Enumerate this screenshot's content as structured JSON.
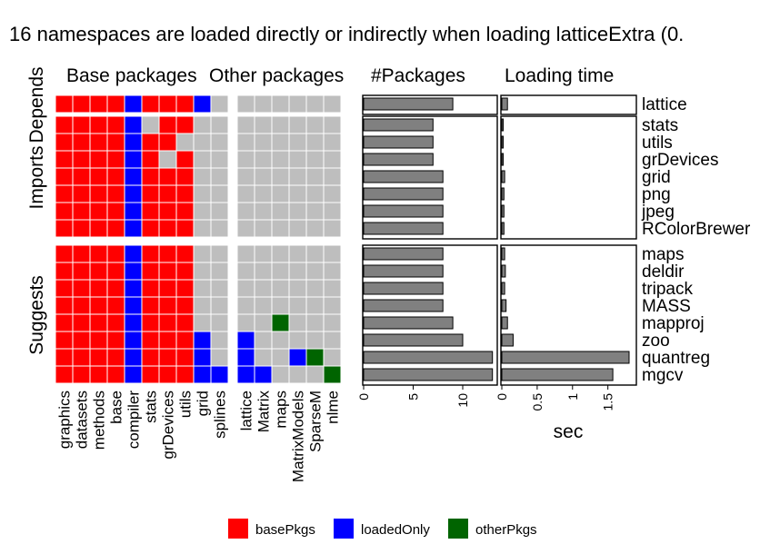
{
  "chart_data": {
    "title": "16 namespaces are loaded directly or indirectly when loading latticeExtra (0.",
    "type": "heatmap",
    "panel_titles": {
      "base": "Base packages",
      "other": "Other packages",
      "count": "#Packages",
      "time": "Loading time"
    },
    "row_groups": [
      "Depends",
      "Imports",
      "Suggests"
    ],
    "rows": [
      {
        "name": "lattice",
        "group": "Depends",
        "n_packages": 9,
        "load_sec": 0.08
      },
      {
        "name": "stats",
        "group": "Imports",
        "n_packages": 7,
        "load_sec": 0.01
      },
      {
        "name": "utils",
        "group": "Imports",
        "n_packages": 7,
        "load_sec": 0.01
      },
      {
        "name": "grDevices",
        "group": "Imports",
        "n_packages": 7,
        "load_sec": 0.01
      },
      {
        "name": "grid",
        "group": "Imports",
        "n_packages": 8,
        "load_sec": 0.04
      },
      {
        "name": "png",
        "group": "Imports",
        "n_packages": 8,
        "load_sec": 0.03
      },
      {
        "name": "jpeg",
        "group": "Imports",
        "n_packages": 8,
        "load_sec": 0.03
      },
      {
        "name": "RColorBrewer",
        "group": "Imports",
        "n_packages": 8,
        "load_sec": 0.03
      },
      {
        "name": "maps",
        "group": "Suggests",
        "n_packages": 8,
        "load_sec": 0.04
      },
      {
        "name": "deldir",
        "group": "Suggests",
        "n_packages": 8,
        "load_sec": 0.05
      },
      {
        "name": "tripack",
        "group": "Suggests",
        "n_packages": 8,
        "load_sec": 0.04
      },
      {
        "name": "MASS",
        "group": "Suggests",
        "n_packages": 8,
        "load_sec": 0.06
      },
      {
        "name": "mapproj",
        "group": "Suggests",
        "n_packages": 9,
        "load_sec": 0.08
      },
      {
        "name": "zoo",
        "group": "Suggests",
        "n_packages": 10,
        "load_sec": 0.16
      },
      {
        "name": "quantreg",
        "group": "Suggests",
        "n_packages": 13,
        "load_sec": 1.8
      },
      {
        "name": "mgcv",
        "group": "Suggests",
        "n_packages": 13,
        "load_sec": 1.57
      }
    ],
    "base_columns": [
      "graphics",
      "datasets",
      "methods",
      "base",
      "compiler",
      "stats",
      "grDevices",
      "utils",
      "grid",
      "splines"
    ],
    "other_columns": [
      "lattice",
      "Matrix",
      "maps",
      "MatrixModels",
      "SparseM",
      "nlme"
    ],
    "base_matrix": [
      "bbbblbbbl.",
      "bbbbl.bb..",
      "bbbblbb...",
      "bbbblb.b..",
      "bbbblbbb..",
      "bbbblbbb..",
      "bbbblbbb..",
      "bbbblbbb..",
      "bbbblbbb..",
      "bbbblbbb..",
      "bbbblbbb..",
      "bbbblbbb..",
      "bbbblbbb..",
      "bbbblbbbl.",
      "bbbblbbbl.",
      "bbbblbbbll"
    ],
    "other_matrix": [
      "......",
      "......",
      "......",
      "......",
      "......",
      "......",
      "......",
      "......",
      "......",
      "......",
      "......",
      "......",
      "..o...",
      "l.....",
      "l..lo.",
      "ll...o"
    ],
    "count_axis": {
      "ticks": [
        0,
        5,
        10
      ],
      "max": 14
    },
    "time_axis": {
      "ticks": [
        "0",
        "0.5",
        "1",
        "1.5"
      ],
      "tick_values": [
        0,
        0.5,
        1,
        1.5
      ],
      "max": 1.9,
      "label": "sec"
    },
    "legend": [
      {
        "code": "b",
        "label": "basePkgs",
        "color": "#ff0000"
      },
      {
        "code": "l",
        "label": "loadedOnly",
        "color": "#0000ff"
      },
      {
        "code": "o",
        "label": "otherPkgs",
        "color": "#006400"
      }
    ],
    "empty_color": "#bebebe",
    "bar_color": "#808080"
  }
}
